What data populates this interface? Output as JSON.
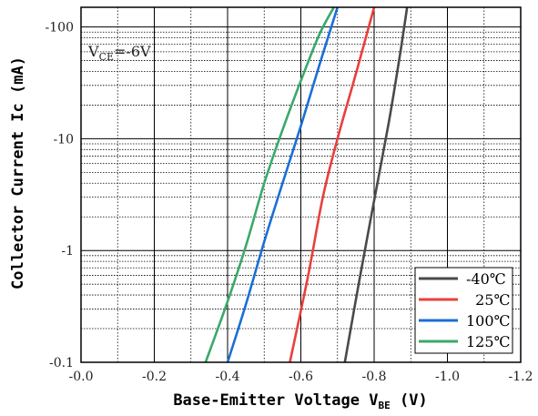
{
  "chart_data": {
    "type": "line",
    "title": "",
    "xlabel": "Base-Emitter Voltage V",
    "xlabel_sub": "BE",
    "xlabel_unit": " (V)",
    "ylabel": "Collector  Current Ic (mA)",
    "xlim": [
      0.0,
      -1.2
    ],
    "ylim": [
      -0.1,
      -150
    ],
    "yscale": "log",
    "grid": true,
    "x_ticks": [
      "-0.0",
      "-0.2",
      "-0.4",
      "-0.6",
      "-0.8",
      "-1.0",
      "-1.2"
    ],
    "y_ticks": [
      "-0.1",
      "-1",
      "-10",
      "-100"
    ],
    "annotation": {
      "main": "V",
      "sub": "CE",
      "rest": "=-6V"
    },
    "legend_position": "bottom-right",
    "series": [
      {
        "name": "-40℃",
        "color": "#4a4a4a",
        "x": [
          -0.72,
          -0.76,
          -0.8,
          -0.84,
          -0.87,
          -0.89
        ],
        "y": [
          -0.1,
          -0.55,
          -2.8,
          -14,
          -55,
          -150
        ]
      },
      {
        "name": "  25℃",
        "color": "#e8403c",
        "x": [
          -0.57,
          -0.62,
          -0.66,
          -0.7,
          -0.75,
          -0.8
        ],
        "y": [
          -0.1,
          -0.6,
          -3,
          -10,
          -38,
          -150
        ]
      },
      {
        "name": "100℃",
        "color": "#1a6fd6",
        "x": [
          -0.4,
          -0.45,
          -0.5,
          -0.55,
          -0.6,
          -0.65,
          -0.7
        ],
        "y": [
          -0.1,
          -0.33,
          -1.2,
          -4,
          -13,
          -45,
          -150
        ]
      },
      {
        "name": "125℃",
        "color": "#3aa96c",
        "x": [
          -0.34,
          -0.4,
          -0.45,
          -0.5,
          -0.55,
          -0.6,
          -0.65,
          -0.69
        ],
        "y": [
          -0.1,
          -0.35,
          -1.1,
          -4,
          -12,
          -33,
          -85,
          -150
        ]
      }
    ]
  }
}
